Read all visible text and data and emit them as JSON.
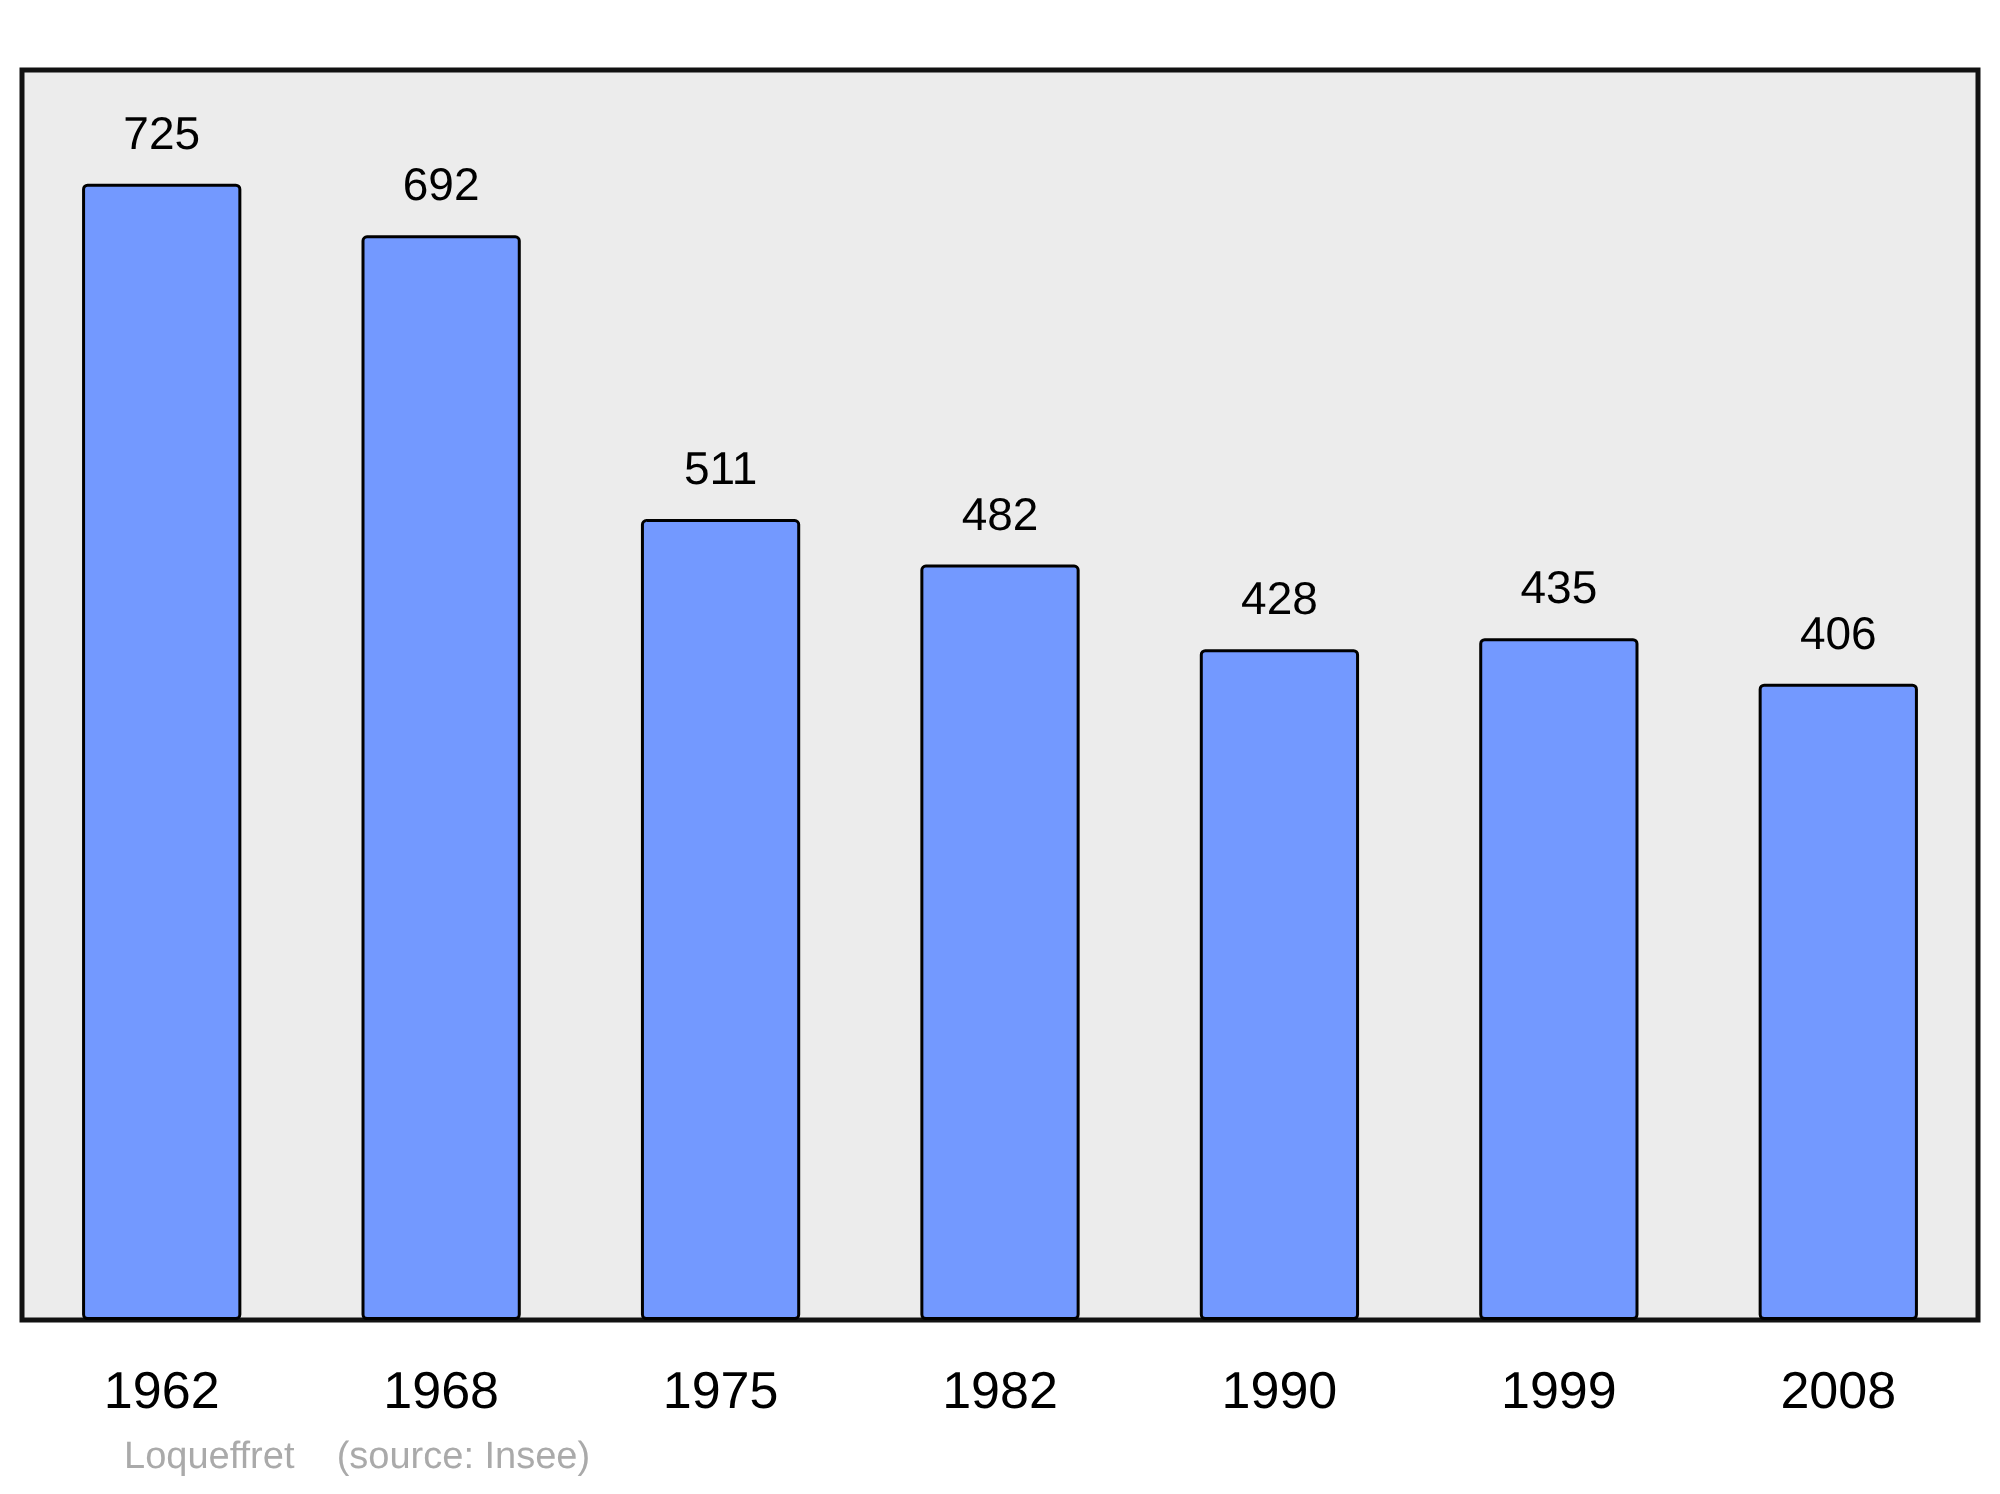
{
  "chart_data": {
    "type": "bar",
    "categories": [
      "1962",
      "1968",
      "1975",
      "1982",
      "1990",
      "1999",
      "2008"
    ],
    "values": [
      725,
      692,
      511,
      482,
      428,
      435,
      406
    ],
    "color": "#7399ff",
    "data_labels": true,
    "annotations": [
      "Loqueffret    (source: Insee)"
    ]
  }
}
